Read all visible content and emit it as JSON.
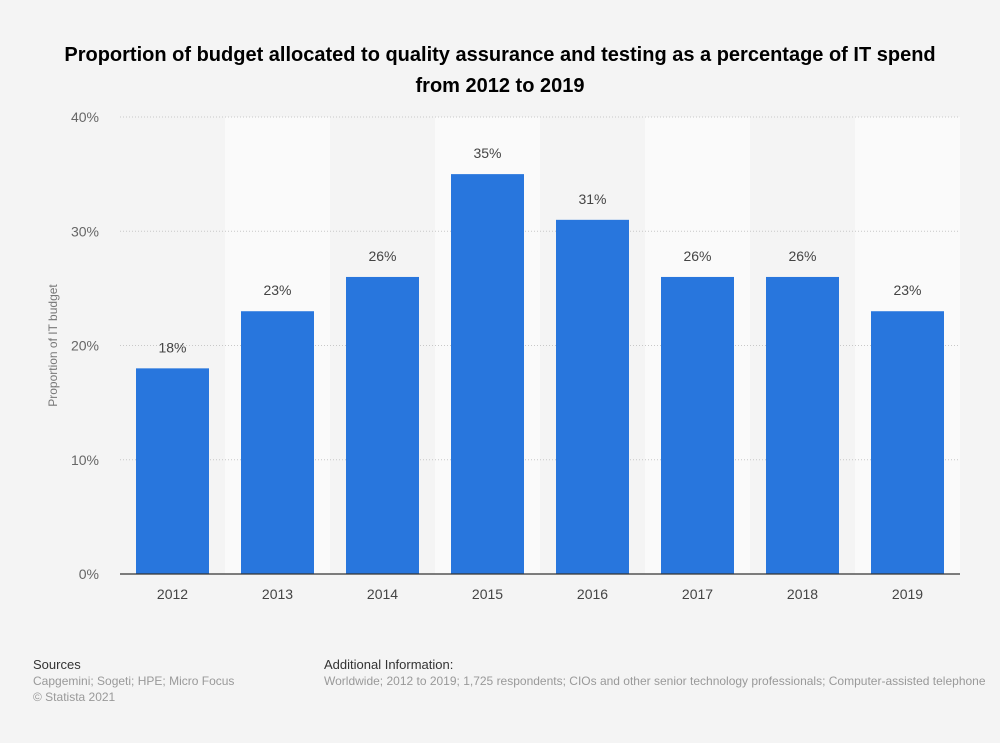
{
  "chart_data": {
    "type": "bar",
    "title": "Proportion of budget allocated to quality assurance and testing as a percentage of IT spend from 2012 to 2019",
    "xlabel": "",
    "ylabel": "Proportion of IT budget",
    "categories": [
      "2012",
      "2013",
      "2014",
      "2015",
      "2016",
      "2017",
      "2018",
      "2019"
    ],
    "values": [
      18,
      23,
      26,
      35,
      31,
      26,
      26,
      23
    ],
    "value_labels": [
      "18%",
      "23%",
      "26%",
      "35%",
      "31%",
      "26%",
      "26%",
      "23%"
    ],
    "ylim": [
      0,
      40
    ],
    "yticks": [
      0,
      10,
      20,
      30,
      40
    ],
    "ytick_labels": [
      "0%",
      "10%",
      "20%",
      "30%",
      "40%"
    ],
    "grid": true,
    "bar_color": "#2876dd"
  },
  "footer": {
    "sources_heading": "Sources",
    "sources": "Capgemini; Sogeti; HPE; Micro Focus",
    "copyright": "© Statista 2021",
    "info_heading": "Additional Information:",
    "info": "Worldwide; 2012 to 2019; 1,725 respondents; CIOs and other senior technology professionals; Computer-assisted telephone"
  }
}
